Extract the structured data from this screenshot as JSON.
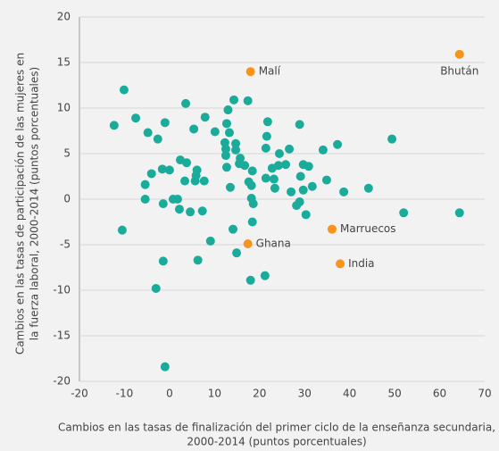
{
  "chart_data": {
    "type": "scatter",
    "xlabel": "Cambios en las tasas de finalización del primer ciclo de la enseñanza secundaria,",
    "xlabel2": "2000-2014 (puntos porcentuales)",
    "ylabel": "Cambios en las tasas de participación de las mujeres en",
    "ylabel2": "la fuerza laboral, 2000-2014 (puntos porcentuales)",
    "xlim": [
      -20,
      70
    ],
    "xticks": [
      -20,
      -10,
      0,
      10,
      20,
      30,
      40,
      50,
      60,
      70
    ],
    "ylim": [
      -20,
      20
    ],
    "yticks": [
      -20,
      -15,
      -10,
      -5,
      0,
      5,
      10,
      15,
      20
    ],
    "grid": true,
    "series": [
      {
        "color": "#1aab9b",
        "x": [
          -12.3,
          -10.1,
          -7.5,
          -4.8,
          -2.6,
          -1.0,
          3.6,
          7.9,
          10.1,
          5.4,
          2.4,
          0,
          -1.6,
          -4.0,
          -5.4,
          -5.4,
          -10.5,
          -1.4,
          0.8,
          1.8,
          2.2,
          4.6,
          3.4,
          3.8,
          6.1,
          5.9,
          5.7,
          7.7,
          7.3,
          6.3,
          9.1,
          14.3,
          12.7,
          13.3,
          12.3,
          12.5,
          12.5,
          12.7,
          14.7,
          14.7,
          15.5,
          15.7,
          16.7,
          13.5,
          17.4,
          17.6,
          18.4,
          18.2,
          18.2,
          18.6,
          18.4,
          18.0,
          14.9,
          14.1,
          21.8,
          21.6,
          21.4,
          22.8,
          21.4,
          23.2,
          23.4,
          24.2,
          24.4,
          25.8,
          26.6,
          27.0,
          28.9,
          29.7,
          30.9,
          29.1,
          28.2,
          28.9,
          30.3,
          29.7,
          31.7,
          34.1,
          34.9,
          37.3,
          38.7,
          44.2,
          49.4,
          52.0,
          64.4,
          21.2,
          -1.4,
          -3.0,
          -1.0,
          13.0
        ],
        "y": [
          8.1,
          12.0,
          8.9,
          7.3,
          6.6,
          8.4,
          10.5,
          9.0,
          7.4,
          7.7,
          4.3,
          3.2,
          3.3,
          2.8,
          1.6,
          0,
          -3.4,
          -0.5,
          0,
          0,
          -1.1,
          -1.4,
          2.0,
          4.0,
          3.2,
          2.6,
          2.0,
          2.0,
          -1.3,
          -6.7,
          -4.6,
          10.9,
          8.3,
          7.3,
          6.2,
          5.5,
          4.8,
          3.5,
          6.1,
          5.4,
          3.9,
          4.5,
          3.7,
          1.3,
          10.8,
          1.9,
          3.1,
          1.5,
          0.1,
          -0.5,
          -2.5,
          -8.9,
          -5.9,
          -3.3,
          8.5,
          6.9,
          5.6,
          3.4,
          2.3,
          2.2,
          1.2,
          3.7,
          5.0,
          3.8,
          5.5,
          0.8,
          8.2,
          3.8,
          3.6,
          2.5,
          -0.7,
          -0.3,
          -1.7,
          1.0,
          1.4,
          5.4,
          2.1,
          6.0,
          0.8,
          1.2,
          6.6,
          -1.5,
          -1.5,
          -8.4,
          -6.8,
          -9.8,
          -18.4,
          9.8
        ]
      },
      {
        "color": "#f7941d",
        "x": [
          18.0,
          64.4,
          17.4,
          36.1,
          37.9
        ],
        "y": [
          14.0,
          15.9,
          -4.9,
          -3.3,
          -7.1
        ],
        "labels": [
          "Malí",
          "Bhután",
          "Ghana",
          "Marruecos",
          "India"
        ]
      }
    ]
  }
}
